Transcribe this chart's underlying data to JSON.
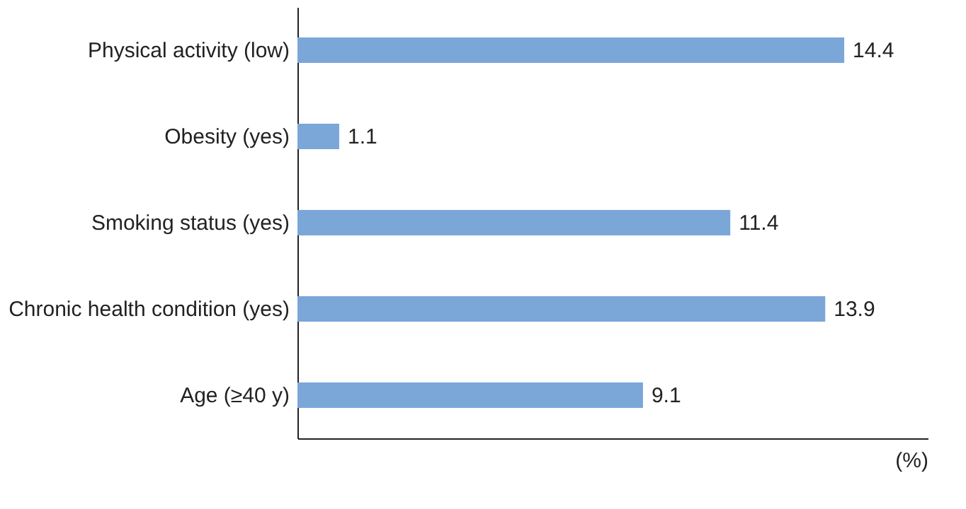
{
  "chart_data": {
    "type": "bar",
    "orientation": "horizontal",
    "xlabel": "(%)",
    "categories": [
      "Physical activity (low)",
      "Obesity (yes)",
      "Smoking status (yes)",
      "Chronic health condition (yes)",
      "Age (≥40 y)"
    ],
    "values": [
      14.4,
      1.1,
      11.4,
      13.9,
      9.1
    ],
    "color": "#7ba6d8",
    "xlim": [
      0,
      16.6
    ],
    "data_labels": true,
    "grid": false,
    "tick_labels": "y"
  }
}
